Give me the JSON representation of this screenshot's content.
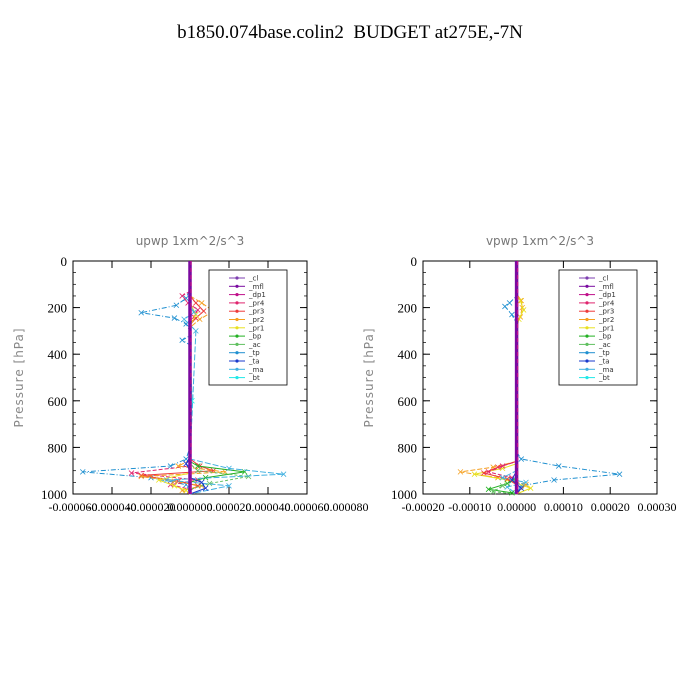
{
  "figure": {
    "title": "b1850.074base.colin2  BUDGET at275E,-7N"
  },
  "legend_entries": [
    {
      "name": "_cl",
      "color": "#7e3fb0"
    },
    {
      "name": "_mfl",
      "color": "#7a0aa0"
    },
    {
      "name": "_dp1",
      "color": "#c0108a"
    },
    {
      "name": "_pr4",
      "color": "#e0246e"
    },
    {
      "name": "_pr3",
      "color": "#ee3a3a"
    },
    {
      "name": "_pr2",
      "color": "#f5a020"
    },
    {
      "name": "_pr1",
      "color": "#e8e020"
    },
    {
      "name": "_bp",
      "color": "#22b022"
    },
    {
      "name": "_ac",
      "color": "#60c060"
    },
    {
      "name": "_tp",
      "color": "#2090d0"
    },
    {
      "name": "_ta",
      "color": "#1a3acc"
    },
    {
      "name": "_ma",
      "color": "#40b0e0"
    },
    {
      "name": "_bt",
      "color": "#20e8e8"
    }
  ],
  "chart_data": [
    {
      "type": "line",
      "title": "upwp   1xm^2/s^3",
      "ylabel": "Pressure  [hPa]",
      "xlabel": "",
      "ylim": [
        1000,
        0
      ],
      "xlim": [
        -6e-05,
        6e-05
      ],
      "y_ticks": [
        0,
        200,
        400,
        600,
        800,
        1000
      ],
      "y_tick_labels": [
        "0",
        "200",
        "400",
        "600",
        "800",
        "1000"
      ],
      "x_ticks": [
        -6e-05,
        -4e-05,
        -2e-05,
        0.0,
        2e-05,
        4e-05,
        6e-05,
        8e-05
      ],
      "x_tick_labels": [
        "-0.000060",
        "-0.000040",
        "-0.000020",
        "0.000000",
        "0.000020",
        "0.000040",
        "0.000060",
        "0.000080"
      ],
      "legend": "upper-right",
      "series": [
        {
          "name": "_tp",
          "color": "#2090d0",
          "dash": "5,2,1,2",
          "x": [
            0,
            0,
            -2e-06,
            -7e-06,
            -2.5e-05,
            -8e-06,
            -2e-06,
            0,
            0,
            -4e-06,
            0,
            0,
            -2e-06,
            -1e-05,
            -5.5e-05,
            -2e-05,
            -2e-06,
            0
          ],
          "y": [
            0,
            120,
            160,
            190,
            222,
            245,
            270,
            300,
            320,
            340,
            360,
            800,
            850,
            880,
            905,
            930,
            960,
            1000
          ]
        },
        {
          "name": "_pr4",
          "color": "#e0246e",
          "dash": "4,2",
          "x": [
            0,
            0,
            -4e-06,
            -1e-06,
            4e-06,
            2e-06,
            0,
            0,
            0,
            -3e-05,
            4e-06,
            -1e-05,
            0,
            0
          ],
          "y": [
            0,
            130,
            150,
            180,
            210,
            240,
            280,
            860,
            880,
            910,
            940,
            960,
            980,
            1000
          ]
        },
        {
          "name": "_pr3",
          "color": "#ee3a3a",
          "dash": "",
          "x": [
            0,
            0,
            3e-06,
            7e-06,
            3e-06,
            0,
            0,
            5e-06,
            1.2e-05,
            -2.5e-05,
            -6e-06,
            4e-06,
            0,
            0
          ],
          "y": [
            0,
            150,
            180,
            215,
            245,
            275,
            850,
            880,
            900,
            920,
            945,
            965,
            985,
            1000
          ]
        },
        {
          "name": "_pr2",
          "color": "#f5a020",
          "dash": "5,2",
          "x": [
            0,
            0,
            6e-06,
            1.2e-05,
            5e-06,
            0,
            0,
            -6e-06,
            1.8e-05,
            -2.5e-05,
            -8e-06,
            6e-06,
            -4e-06,
            0
          ],
          "y": [
            0,
            150,
            180,
            215,
            250,
            285,
            855,
            880,
            905,
            925,
            945,
            965,
            985,
            1000
          ]
        },
        {
          "name": "_pr1",
          "color": "#e8e020",
          "dash": "",
          "x": [
            0,
            0,
            0,
            3e-06,
            0,
            0,
            0,
            -1.6e-05,
            -8e-06,
            -2e-06,
            0
          ],
          "y": [
            0,
            150,
            180,
            230,
            280,
            880,
            910,
            940,
            965,
            985,
            1000
          ]
        },
        {
          "name": "_bp",
          "color": "#22b022",
          "dash": "",
          "x": [
            0,
            0,
            4e-06,
            2.8e-05,
            8e-06,
            0,
            0,
            0
          ],
          "y": [
            0,
            860,
            880,
            905,
            930,
            950,
            975,
            1000
          ]
        },
        {
          "name": "_ac",
          "color": "#60c060",
          "dash": "3,2",
          "x": [
            0,
            0,
            4e-06,
            3e-05,
            1e-05,
            0,
            0
          ],
          "y": [
            0,
            870,
            900,
            925,
            955,
            980,
            1000
          ]
        },
        {
          "name": "_ma",
          "color": "#40b0e0",
          "dash": "6,2",
          "x": [
            0,
            0,
            2e-06,
            -3e-06,
            3e-06,
            0,
            2e-05,
            4.8e-05,
            -1.2e-05,
            2e-05,
            0
          ],
          "y": [
            0,
            180,
            220,
            250,
            300,
            850,
            890,
            915,
            940,
            965,
            1000
          ]
        },
        {
          "name": "_ta",
          "color": "#1a3acc",
          "dash": "",
          "x": [
            0,
            0,
            -2e-06,
            0,
            0,
            6e-06,
            8e-06,
            0
          ],
          "y": [
            0,
            840,
            870,
            900,
            930,
            950,
            975,
            1000
          ]
        },
        {
          "name": "_bt",
          "color": "#20e8e8",
          "dash": "",
          "x": [
            0,
            0,
            1e-06,
            0,
            0
          ],
          "y": [
            0,
            300,
            600,
            900,
            1000
          ]
        },
        {
          "name": "_dp1",
          "color": "#c0108a",
          "dash": "",
          "x": [
            0,
            0,
            0,
            0
          ],
          "y": [
            0,
            400,
            800,
            1000
          ]
        },
        {
          "name": "_cl",
          "color": "#7e3fb0",
          "dash": "",
          "x": [
            0,
            0,
            0
          ],
          "y": [
            0,
            500,
            1000
          ]
        },
        {
          "name": "_mfl",
          "color": "#7a0aa0",
          "dash": "",
          "x": [
            0,
            0,
            0
          ],
          "y": [
            0,
            500,
            1000
          ]
        }
      ]
    },
    {
      "type": "line",
      "title": "vpwp   1xm^2/s^3",
      "ylabel": "Pressure  [hPa]",
      "xlabel": "",
      "ylim": [
        1000,
        0
      ],
      "xlim": [
        -0.0002,
        0.0003
      ],
      "y_ticks": [
        0,
        200,
        400,
        600,
        800,
        1000
      ],
      "y_tick_labels": [
        "0",
        "200",
        "400",
        "600",
        "800",
        "1000"
      ],
      "x_ticks": [
        -0.0002,
        -0.0001,
        0.0,
        0.0001,
        0.0002,
        0.0003
      ],
      "x_tick_labels": [
        "-0.00020",
        "-0.00010",
        "0.00000",
        "0.00010",
        "0.00020",
        "0.00030"
      ],
      "legend": "upper-right",
      "series": [
        {
          "name": "_tp",
          "color": "#2090d0",
          "dash": "5,2,1,2",
          "x": [
            0,
            0,
            -1.5e-05,
            -2.5e-05,
            -1e-05,
            0,
            0,
            1e-05,
            9e-05,
            0.00022,
            8e-05,
            1e-05,
            0
          ],
          "y": [
            0,
            150,
            180,
            195,
            230,
            270,
            820,
            850,
            880,
            915,
            940,
            965,
            1000
          ]
        },
        {
          "name": "_pr2",
          "color": "#f5a020",
          "dash": "5,2",
          "x": [
            0,
            0,
            1e-05,
            1.2e-05,
            8e-06,
            0,
            0,
            -5e-05,
            -0.00012,
            -4e-05,
            2e-05,
            0
          ],
          "y": [
            0,
            140,
            170,
            200,
            240,
            280,
            860,
            885,
            905,
            930,
            960,
            1000
          ]
        },
        {
          "name": "_pr1",
          "color": "#e8e020",
          "dash": "",
          "x": [
            0,
            0,
            8e-06,
            1.5e-05,
            5e-06,
            0,
            0,
            -3e-05,
            -9e-05,
            -2e-05,
            3e-05,
            0
          ],
          "y": [
            0,
            140,
            170,
            210,
            250,
            290,
            870,
            890,
            915,
            940,
            975,
            1000
          ]
        },
        {
          "name": "_pr3",
          "color": "#ee3a3a",
          "dash": "",
          "x": [
            0,
            0,
            -4e-05,
            -7e-05,
            -2e-05,
            0,
            0
          ],
          "y": [
            0,
            860,
            885,
            910,
            935,
            960,
            1000
          ]
        },
        {
          "name": "_pr4",
          "color": "#e0246e",
          "dash": "4,2",
          "x": [
            0,
            0,
            -3e-05,
            -6e-05,
            -1e-05,
            0,
            0
          ],
          "y": [
            0,
            860,
            880,
            905,
            930,
            955,
            1000
          ]
        },
        {
          "name": "_ma",
          "color": "#40b0e0",
          "dash": "6,2",
          "x": [
            0,
            0,
            -3e-05,
            2e-05,
            -2e-05,
            0
          ],
          "y": [
            0,
            900,
            930,
            950,
            970,
            1000
          ]
        },
        {
          "name": "_bp",
          "color": "#22b022",
          "dash": "",
          "x": [
            0,
            0,
            -2e-05,
            -6e-05,
            -1e-05,
            0
          ],
          "y": [
            0,
            930,
            955,
            980,
            995,
            1000
          ]
        },
        {
          "name": "_ac",
          "color": "#60c060",
          "dash": "3,2",
          "x": [
            0,
            0,
            -3e-05,
            -5e-05,
            0
          ],
          "y": [
            0,
            940,
            965,
            990,
            1000
          ]
        },
        {
          "name": "_ta",
          "color": "#1a3acc",
          "dash": "",
          "x": [
            0,
            0,
            -1e-05,
            1e-05,
            0
          ],
          "y": [
            0,
            900,
            940,
            975,
            1000
          ]
        },
        {
          "name": "_bt",
          "color": "#20e8e8",
          "dash": "",
          "x": [
            0,
            0,
            0
          ],
          "y": [
            0,
            500,
            1000
          ]
        },
        {
          "name": "_dp1",
          "color": "#c0108a",
          "dash": "",
          "x": [
            0,
            0,
            0
          ],
          "y": [
            0,
            500,
            1000
          ]
        },
        {
          "name": "_cl",
          "color": "#7e3fb0",
          "dash": "",
          "x": [
            0,
            0,
            0
          ],
          "y": [
            0,
            500,
            1000
          ]
        },
        {
          "name": "_mfl",
          "color": "#7a0aa0",
          "dash": "",
          "x": [
            0,
            0,
            0
          ],
          "y": [
            0,
            500,
            1000
          ]
        }
      ]
    }
  ]
}
